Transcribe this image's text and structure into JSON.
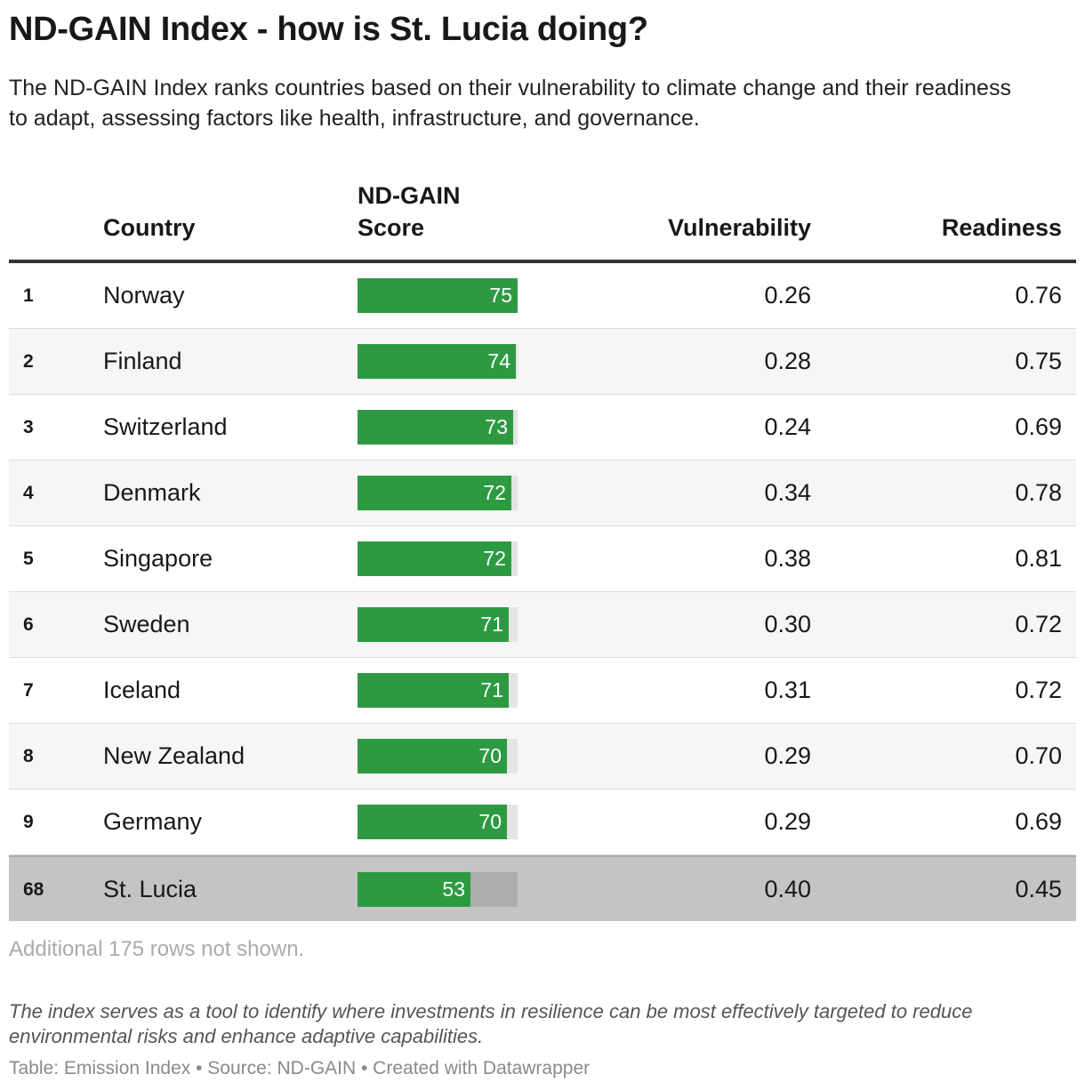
{
  "title": "ND-GAIN Index - how is St. Lucia doing?",
  "subtitle": "The ND-GAIN Index ranks countries based on their vulnerability to climate change and their readiness to adapt, assessing factors like health, infrastructure, and governance.",
  "headers": {
    "country": "Country",
    "score_line1": "ND-GAIN",
    "score_line2": "Score",
    "vulnerability": "Vulnerability",
    "readiness": "Readiness"
  },
  "colors": {
    "bar": "#2d9a42",
    "bar_track": "#e4e4e4",
    "highlight_row": "#c4c4c4"
  },
  "note": "Additional 175 rows not shown.",
  "footnote": "The index serves as a tool to identify where investments in resilience can be most effectively targeted to reduce environmental risks and enhance adaptive capabilities.",
  "credit": "Table: Emission Index • Source: ND-GAIN • Created with Datawrapper",
  "chart_data": {
    "type": "table",
    "score_range": [
      0,
      75
    ],
    "columns": [
      "",
      "Country",
      "ND-GAIN Score",
      "Vulnerability",
      "Readiness"
    ],
    "rows": [
      {
        "rank": "1",
        "country": "Norway",
        "score": 75,
        "vulnerability": "0.26",
        "readiness": "0.76"
      },
      {
        "rank": "2",
        "country": "Finland",
        "score": 74,
        "vulnerability": "0.28",
        "readiness": "0.75"
      },
      {
        "rank": "3",
        "country": "Switzerland",
        "score": 73,
        "vulnerability": "0.24",
        "readiness": "0.69"
      },
      {
        "rank": "4",
        "country": "Denmark",
        "score": 72,
        "vulnerability": "0.34",
        "readiness": "0.78"
      },
      {
        "rank": "5",
        "country": "Singapore",
        "score": 72,
        "vulnerability": "0.38",
        "readiness": "0.81"
      },
      {
        "rank": "6",
        "country": "Sweden",
        "score": 71,
        "vulnerability": "0.30",
        "readiness": "0.72"
      },
      {
        "rank": "7",
        "country": "Iceland",
        "score": 71,
        "vulnerability": "0.31",
        "readiness": "0.72"
      },
      {
        "rank": "8",
        "country": "New Zealand",
        "score": 70,
        "vulnerability": "0.29",
        "readiness": "0.70"
      },
      {
        "rank": "9",
        "country": "Germany",
        "score": 70,
        "vulnerability": "0.29",
        "readiness": "0.69"
      },
      {
        "rank": "68",
        "country": "St. Lucia",
        "score": 53,
        "vulnerability": "0.40",
        "readiness": "0.45",
        "highlight": true
      }
    ]
  }
}
